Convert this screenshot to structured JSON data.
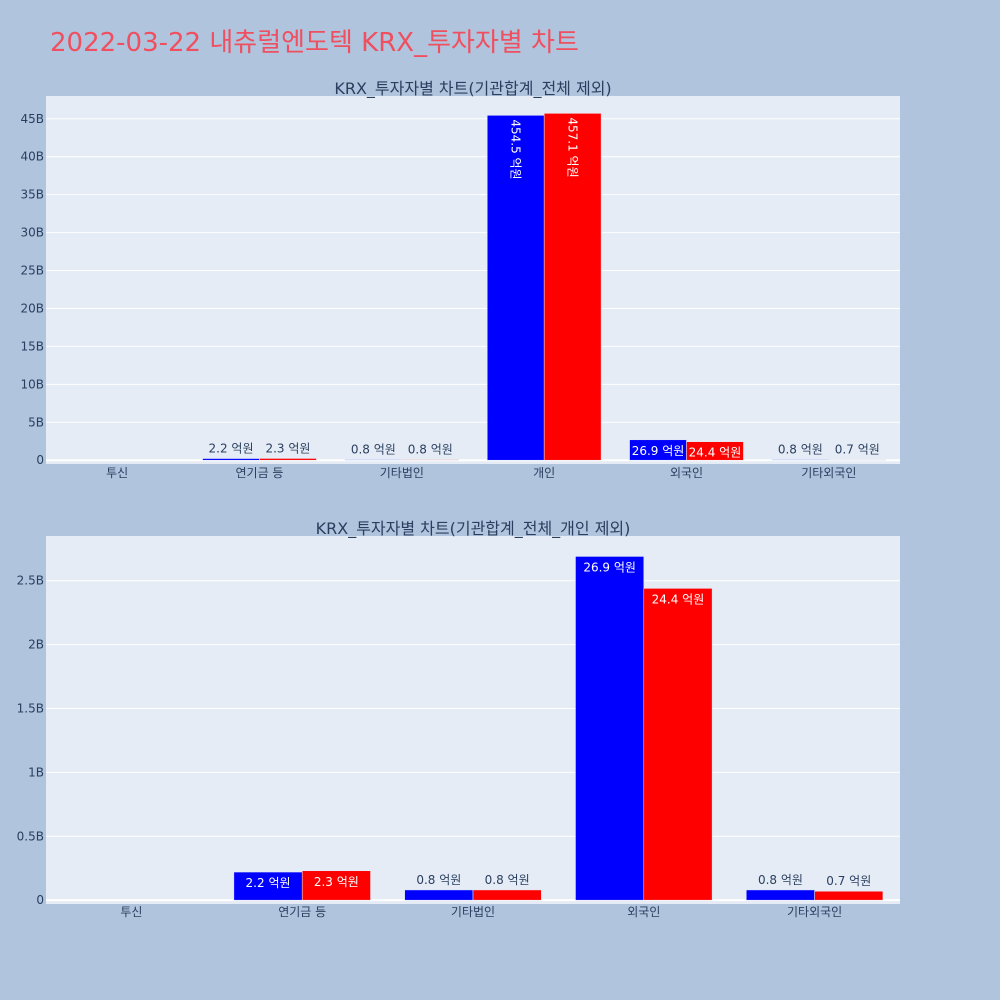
{
  "page": {
    "title": "2022-03-22 내츄럴엔도텍 KRX_투자자별 차트"
  },
  "colors": {
    "background": "#b0c4de",
    "plot_bg": "#e5ecf6",
    "title": "#ef4f5f",
    "series_a": "#0000ff",
    "series_b": "#ff0000",
    "text": "#2a3f5f"
  },
  "chart_data": [
    {
      "type": "bar",
      "title": "KRX_투자자별 차트(기관합계_전체 제외)",
      "categories": [
        "투신",
        "연기금 등",
        "기타법인",
        "개인",
        "외국인",
        "기타외국인"
      ],
      "series": [
        {
          "color": "#0000ff",
          "values": [
            0,
            220000000,
            80000000,
            45450000000,
            2690000000,
            80000000
          ],
          "labels": [
            "",
            "2.2 억원",
            "0.8 억원",
            "454.5 억원",
            "26.9 억원",
            "0.8 억원"
          ]
        },
        {
          "color": "#ff0000",
          "values": [
            0,
            230000000,
            80000000,
            45710000000,
            2440000000,
            70000000
          ],
          "labels": [
            "",
            "2.3 억원",
            "0.8 억원",
            "457.1 억원",
            "24.4 억원",
            "0.7 억원"
          ]
        }
      ],
      "ylim": [
        -500000000,
        48000000000
      ],
      "yticks": [
        0,
        5000000000,
        10000000000,
        15000000000,
        20000000000,
        25000000000,
        30000000000,
        35000000000,
        40000000000,
        45000000000
      ],
      "ytick_labels": [
        "0",
        "5B",
        "10B",
        "15B",
        "20B",
        "25B",
        "30B",
        "35B",
        "40B",
        "45B"
      ],
      "grid": true
    },
    {
      "type": "bar",
      "title": "KRX_투자자별 차트(기관합계_전체_개인 제외)",
      "categories": [
        "투신",
        "연기금 등",
        "기타법인",
        "외국인",
        "기타외국인"
      ],
      "series": [
        {
          "color": "#0000ff",
          "values": [
            0,
            220000000,
            80000000,
            2690000000,
            80000000
          ],
          "labels": [
            "",
            "2.2 억원",
            "0.8 억원",
            "26.9 억원",
            "0.8 억원"
          ]
        },
        {
          "color": "#ff0000",
          "values": [
            0,
            230000000,
            80000000,
            2440000000,
            70000000
          ],
          "labels": [
            "",
            "2.3 억원",
            "0.8 억원",
            "24.4 억원",
            "0.7 억원"
          ]
        }
      ],
      "ylim": [
        -30000000,
        2850000000
      ],
      "yticks": [
        0,
        500000000,
        1000000000,
        1500000000,
        2000000000,
        2500000000
      ],
      "ytick_labels": [
        "0",
        "0.5B",
        "1B",
        "1.5B",
        "2B",
        "2.5B"
      ],
      "grid": true
    }
  ]
}
